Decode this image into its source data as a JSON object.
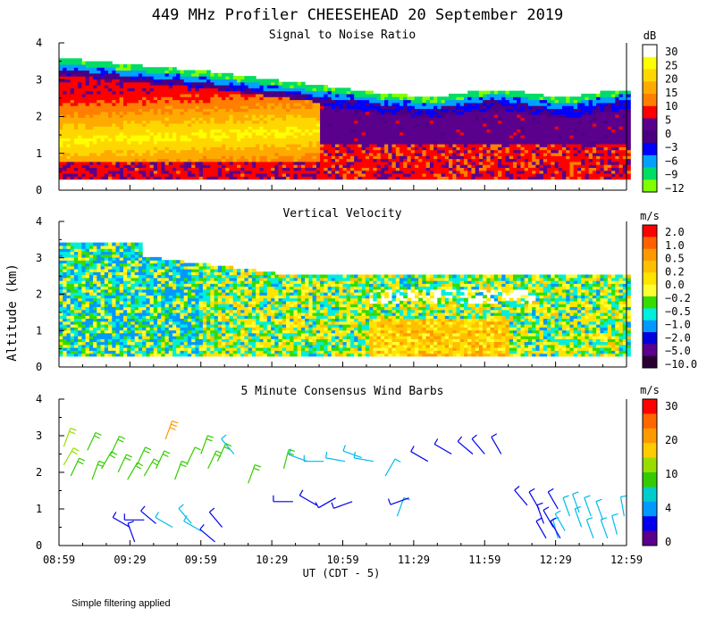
{
  "figure": {
    "title": "449 MHz Profiler CHEESEHEAD 20 September 2019",
    "ylabel": "Altitude (km)",
    "xlabel": "UT  (CDT - 5)",
    "footnote": "Simple filtering applied"
  },
  "chart_data": [
    {
      "type": "heatmap",
      "title": "Signal to Noise Ratio",
      "x_ticks": [
        "08:59",
        "09:29",
        "09:59",
        "10:29",
        "10:59",
        "11:29",
        "11:59",
        "12:29",
        "12:59"
      ],
      "xlim_minutes_from_0859": [
        0,
        240
      ],
      "ylim": [
        0,
        4
      ],
      "y_ticks": [
        "0",
        "1",
        "2",
        "3",
        "4"
      ],
      "colorbar_unit": "dB",
      "colorbar_labels": [
        "30",
        "25",
        "20",
        "15",
        "10",
        "5",
        "0",
        "−3",
        "−6",
        "−9",
        "−12"
      ],
      "colorbar_colors": [
        "#ffffff",
        "#ffff00",
        "#ffd700",
        "#ffaa00",
        "#ff7f00",
        "#ff0000",
        "#5a008c",
        "#4b0082",
        "#0000ff",
        "#00a0ff",
        "#00dd66",
        "#80ff00"
      ],
      "note": "SNR field: strong returns (15-30 dB) below ~2.3 km before 10:30, decreasing afterwards; top of return near 3.5 km early, 2.7 km late"
    },
    {
      "type": "heatmap",
      "title": "Vertical Velocity",
      "x_ticks": [
        "08:59",
        "09:29",
        "09:59",
        "10:29",
        "10:59",
        "11:29",
        "11:59",
        "12:29",
        "12:59"
      ],
      "xlim_minutes_from_0859": [
        0,
        240
      ],
      "ylim": [
        0,
        4
      ],
      "y_ticks": [
        "0",
        "1",
        "2",
        "3",
        "4"
      ],
      "colorbar_unit": "m/s",
      "colorbar_labels": [
        "2.0",
        "1.0",
        "0.5",
        "0.2",
        "0.0",
        "−0.2",
        "−0.5",
        "−1.0",
        "−2.0",
        "−5.0",
        "−10.0"
      ],
      "colorbar_colors": [
        "#ff0000",
        "#ff6000",
        "#ff9900",
        "#ffc000",
        "#ffe400",
        "#ffff33",
        "#33dd00",
        "#00eedd",
        "#0099ff",
        "#0000dd",
        "#5a008c",
        "#2a0033"
      ],
      "note": "Mostly -0.5 to +0.5 m/s; top of data near 3.4 km early, ~2.5 km after 10:30"
    },
    {
      "type": "scatter",
      "title": "5 Minute Consensus Wind Barbs",
      "x_ticks": [
        "08:59",
        "09:29",
        "09:59",
        "10:29",
        "10:59",
        "11:29",
        "11:59",
        "12:29",
        "12:59"
      ],
      "xlim_minutes_from_0859": [
        0,
        240
      ],
      "ylim": [
        0,
        4
      ],
      "y_ticks": [
        "0",
        "1",
        "2",
        "3",
        "4"
      ],
      "colorbar_unit": "m/s",
      "colorbar_labels": [
        "30",
        "20",
        "10",
        "4",
        "0"
      ],
      "colorbar_colors": [
        "#ff0000",
        "#ff6600",
        "#ff9900",
        "#ffcc00",
        "#99dd00",
        "#33cc00",
        "#00cccc",
        "#0099ff",
        "#0000ee",
        "#5a008c"
      ],
      "barbs": [
        {
          "t": 2,
          "alt": 2.7,
          "speed": 11,
          "dir": 20
        },
        {
          "t": 2,
          "alt": 2.2,
          "speed": 11,
          "dir": 30
        },
        {
          "t": 5,
          "alt": 1.9,
          "speed": 10,
          "dir": 25
        },
        {
          "t": 12,
          "alt": 2.6,
          "speed": 10,
          "dir": 25
        },
        {
          "t": 14,
          "alt": 1.8,
          "speed": 9,
          "dir": 20
        },
        {
          "t": 18,
          "alt": 2.1,
          "speed": 10,
          "dir": 30
        },
        {
          "t": 22,
          "alt": 2.5,
          "speed": 9,
          "dir": 25
        },
        {
          "t": 25,
          "alt": 2.0,
          "speed": 9,
          "dir": 25
        },
        {
          "t": 29,
          "alt": 1.8,
          "speed": 9,
          "dir": 30
        },
        {
          "t": 33,
          "alt": 2.2,
          "speed": 9,
          "dir": 25
        },
        {
          "t": 36,
          "alt": 1.9,
          "speed": 10,
          "dir": 30
        },
        {
          "t": 41,
          "alt": 2.1,
          "speed": 10,
          "dir": 25
        },
        {
          "t": 45,
          "alt": 2.9,
          "speed": 16,
          "dir": 20
        },
        {
          "t": 49,
          "alt": 1.8,
          "speed": 9,
          "dir": 20
        },
        {
          "t": 54,
          "alt": 2.2,
          "speed": 7,
          "dir": 25
        },
        {
          "t": 60,
          "alt": 2.5,
          "speed": 10,
          "dir": 20
        },
        {
          "t": 63,
          "alt": 2.1,
          "speed": 9,
          "dir": 25
        },
        {
          "t": 67,
          "alt": 2.3,
          "speed": 10,
          "dir": 25
        },
        {
          "t": 74,
          "alt": 2.5,
          "speed": 6,
          "dir": 320
        },
        {
          "t": 80,
          "alt": 1.7,
          "speed": 8,
          "dir": 20
        },
        {
          "t": 95,
          "alt": 2.1,
          "speed": 8,
          "dir": 15
        },
        {
          "t": 99,
          "alt": 1.2,
          "speed": 2,
          "dir": 270
        },
        {
          "t": 105,
          "alt": 2.3,
          "speed": 6,
          "dir": 290
        },
        {
          "t": 109,
          "alt": 1.1,
          "speed": 3,
          "dir": 300
        },
        {
          "t": 112,
          "alt": 2.3,
          "speed": 6,
          "dir": 270
        },
        {
          "t": 117,
          "alt": 1.3,
          "speed": 3,
          "dir": 240
        },
        {
          "t": 121,
          "alt": 2.3,
          "speed": 6,
          "dir": 280
        },
        {
          "t": 124,
          "alt": 1.2,
          "speed": 2,
          "dir": 250
        },
        {
          "t": 128,
          "alt": 2.4,
          "speed": 5,
          "dir": 290
        },
        {
          "t": 133,
          "alt": 2.3,
          "speed": 5,
          "dir": 280
        },
        {
          "t": 138,
          "alt": 1.9,
          "speed": 6,
          "dir": 30
        },
        {
          "t": 143,
          "alt": 0.8,
          "speed": 6,
          "dir": 20
        },
        {
          "t": 148,
          "alt": 1.3,
          "speed": 3,
          "dir": 250
        },
        {
          "t": 156,
          "alt": 2.3,
          "speed": 3,
          "dir": 300
        },
        {
          "t": 166,
          "alt": 2.5,
          "speed": 3,
          "dir": 300
        },
        {
          "t": 175,
          "alt": 2.5,
          "speed": 3,
          "dir": 310
        },
        {
          "t": 180,
          "alt": 2.5,
          "speed": 3,
          "dir": 320
        },
        {
          "t": 187,
          "alt": 2.5,
          "speed": 3,
          "dir": 330
        },
        {
          "t": 198,
          "alt": 1.1,
          "speed": 3,
          "dir": 320
        },
        {
          "t": 203,
          "alt": 1.0,
          "speed": 3,
          "dir": 330
        },
        {
          "t": 205,
          "alt": 0.6,
          "speed": 3,
          "dir": 340
        },
        {
          "t": 211,
          "alt": 1.0,
          "speed": 3,
          "dir": 330
        },
        {
          "t": 216,
          "alt": 0.8,
          "speed": 4,
          "dir": 340
        },
        {
          "t": 206,
          "alt": 0.2,
          "speed": 2,
          "dir": 330
        },
        {
          "t": 214,
          "alt": 0.4,
          "speed": 4,
          "dir": 330
        },
        {
          "t": 221,
          "alt": 0.5,
          "speed": 5,
          "dir": 340
        },
        {
          "t": 226,
          "alt": 0.2,
          "speed": 5,
          "dir": 340
        },
        {
          "t": 232,
          "alt": 0.2,
          "speed": 5,
          "dir": 340
        },
        {
          "t": 230,
          "alt": 0.7,
          "speed": 6,
          "dir": 340
        },
        {
          "t": 236,
          "alt": 0.3,
          "speed": 6,
          "dir": 345
        },
        {
          "t": 220,
          "alt": 0.9,
          "speed": 6,
          "dir": 340
        },
        {
          "t": 211,
          "alt": 0.2,
          "speed": 6,
          "dir": 345
        },
        {
          "t": 225,
          "alt": 0.8,
          "speed": 5,
          "dir": 340
        },
        {
          "t": 239,
          "alt": 0.8,
          "speed": 5,
          "dir": 350
        },
        {
          "t": 30,
          "alt": 0.5,
          "speed": 3,
          "dir": 300
        },
        {
          "t": 32,
          "alt": 0.1,
          "speed": 2,
          "dir": 340
        },
        {
          "t": 36,
          "alt": 0.7,
          "speed": 2,
          "dir": 270
        },
        {
          "t": 41,
          "alt": 0.6,
          "speed": 3,
          "dir": 310
        },
        {
          "t": 48,
          "alt": 0.5,
          "speed": 4,
          "dir": 300
        },
        {
          "t": 56,
          "alt": 0.6,
          "speed": 4,
          "dir": 320
        },
        {
          "t": 60,
          "alt": 0.4,
          "speed": 4,
          "dir": 300
        },
        {
          "t": 66,
          "alt": 0.1,
          "speed": 2,
          "dir": 310
        },
        {
          "t": 69,
          "alt": 0.5,
          "speed": 3,
          "dir": 320
        },
        {
          "t": 209,
          "alt": 0.5,
          "speed": 3,
          "dir": 330
        },
        {
          "t": 212,
          "alt": 0.2,
          "speed": 3,
          "dir": 330
        }
      ]
    }
  ]
}
